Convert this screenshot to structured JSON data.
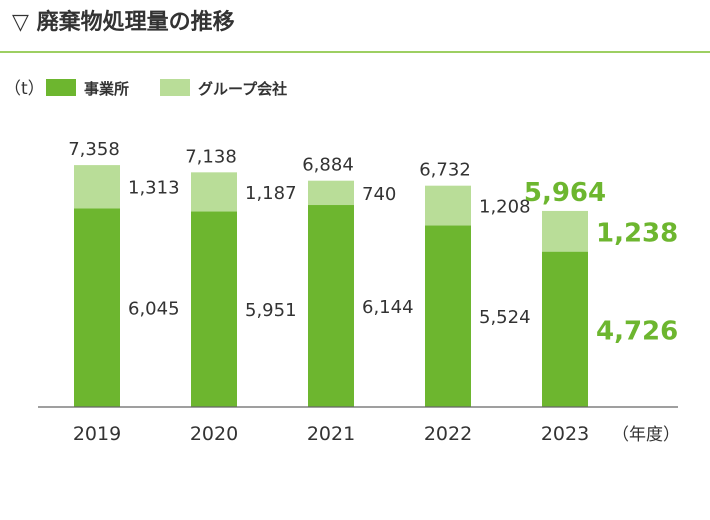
{
  "title": "▽ 廃棄物処理量の推移",
  "colors": {
    "rule": "#9dcf62",
    "base": "#6db62f",
    "top": "#b9dd98",
    "axis": "#666666",
    "highlight": "#6db62f"
  },
  "chart_data": {
    "type": "bar",
    "stacked": true,
    "unit_label": "（t）",
    "x_unit_label": "（年度）",
    "categories": [
      "2019",
      "2020",
      "2021",
      "2022",
      "2023"
    ],
    "series": [
      {
        "name": "事業所",
        "values": [
          6045,
          5951,
          6144,
          5524,
          4726
        ]
      },
      {
        "name": "グループ会社",
        "values": [
          1313,
          1187,
          740,
          1208,
          1238
        ]
      }
    ],
    "totals": [
      7358,
      7138,
      6884,
      6732,
      5964
    ],
    "value_labels": {
      "base": [
        "6,045",
        "5,951",
        "6,144",
        "5,524",
        "4,726"
      ],
      "top": [
        "1,313",
        "1,187",
        "740",
        "1,208",
        "1,238"
      ],
      "total": [
        "7,358",
        "7,138",
        "6,884",
        "6,732",
        "5,964"
      ]
    },
    "highlight_index": 4,
    "ylim": [
      0,
      8000
    ],
    "legend_position": "top-left",
    "grid": false
  }
}
